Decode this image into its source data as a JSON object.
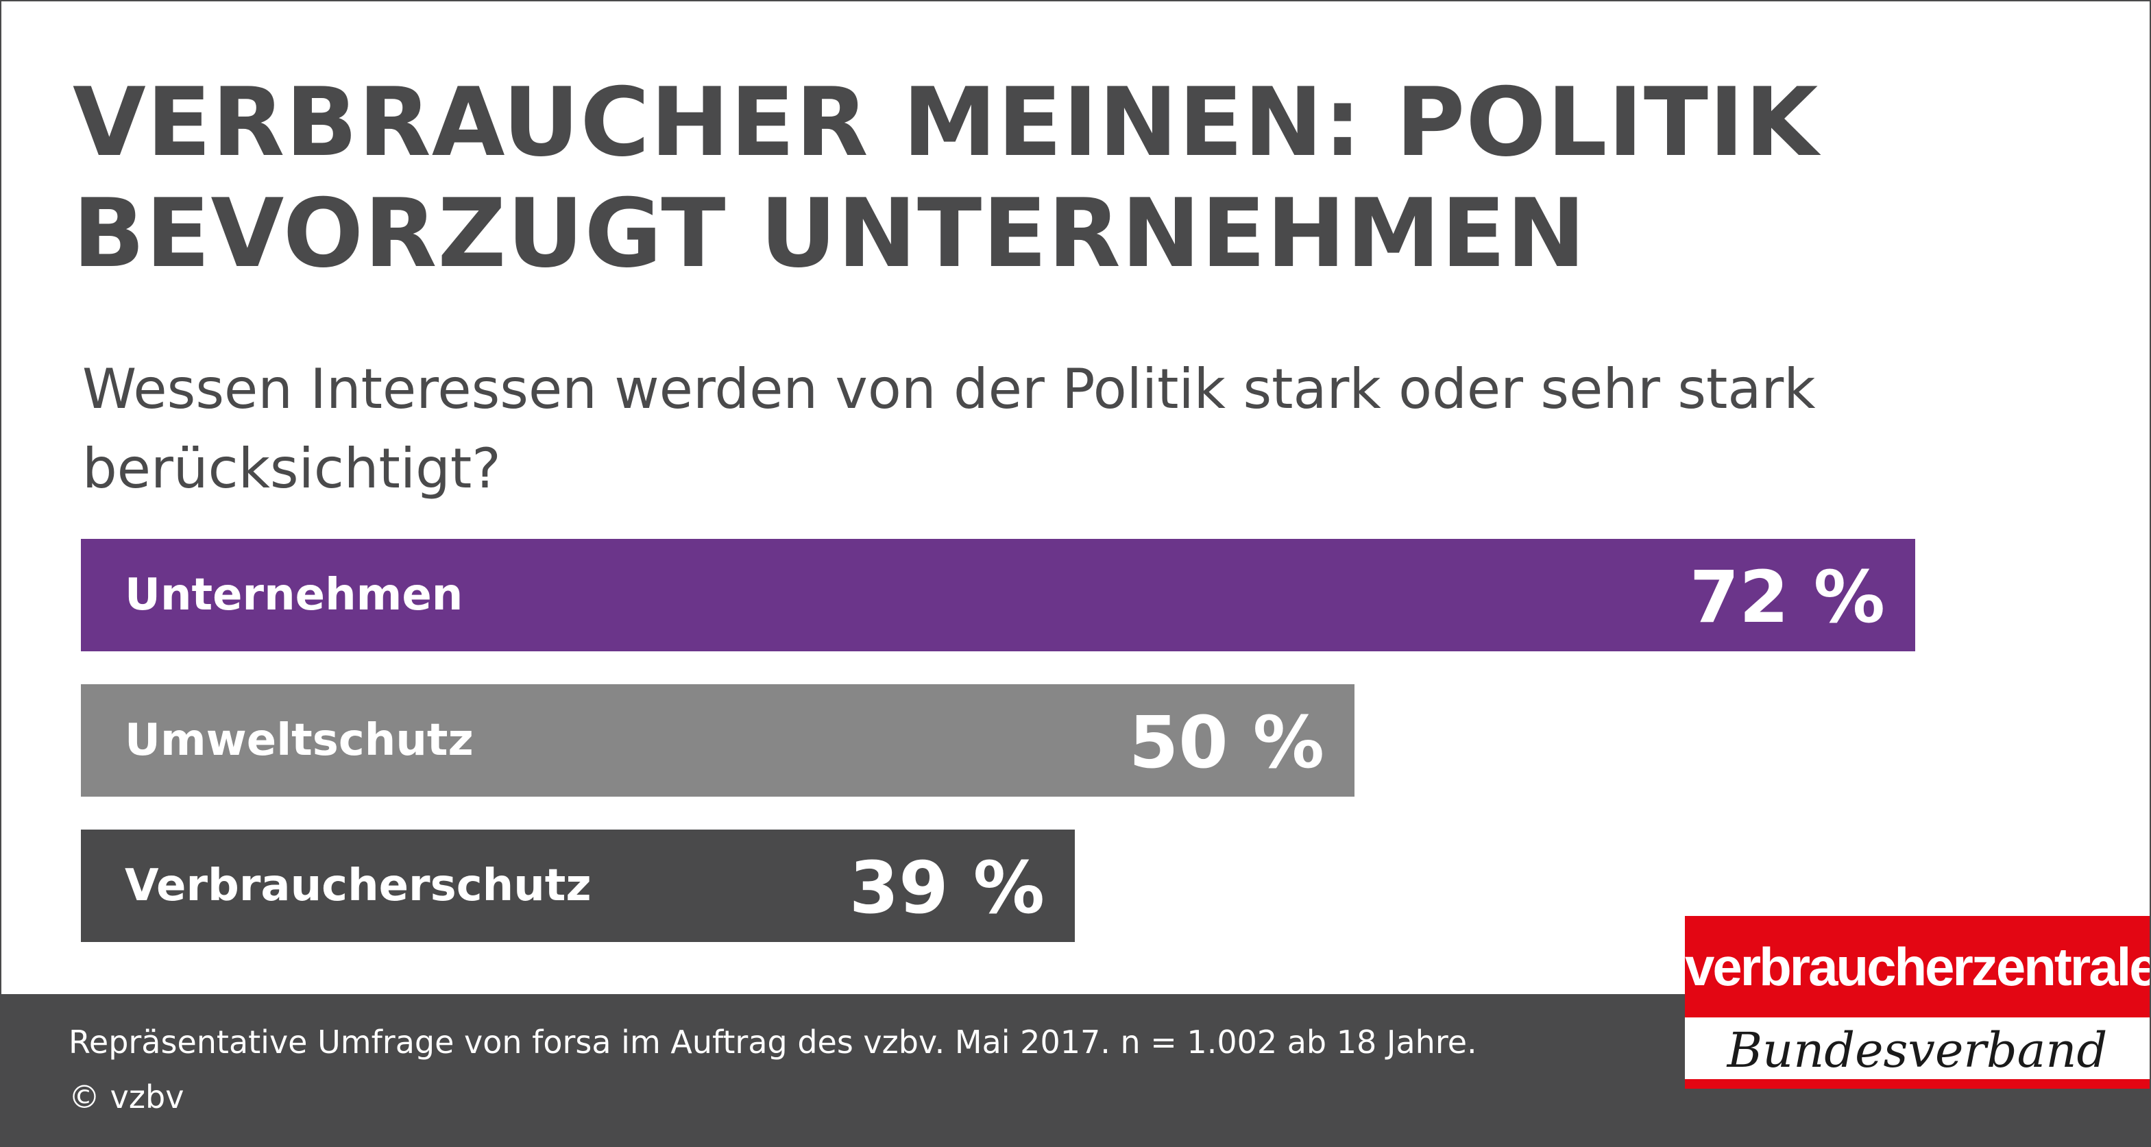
{
  "title": "VERBRAUCHER MEINEN: POLITIK BEVORZUGT UNTERNEHMEN",
  "subtitle": "Wessen Interessen werden von der Politik stark oder sehr stark berücksichtigt?",
  "chart_data": {
    "type": "bar",
    "orientation": "horizontal",
    "title": "VERBRAUCHER MEINEN: POLITIK BEVORZUGT UNTERNEHMEN",
    "subtitle": "Wessen Interessen werden von der Politik stark oder sehr stark berücksichtigt?",
    "categories": [
      "Unternehmen",
      "Umweltschutz",
      "Verbraucherschutz"
    ],
    "values": [
      72,
      50,
      39
    ],
    "value_labels": [
      "72 %",
      "50 %",
      "39 %"
    ],
    "unit": "%",
    "colors": [
      "#6b358a",
      "#878787",
      "#4a4a4b"
    ],
    "xlim": [
      0,
      72
    ],
    "grid": false,
    "legend": "none"
  },
  "footer": {
    "source": "Repräsentative Umfrage von forsa im Auftrag des vzbv. Mai 2017. n = 1.002 ab 18 Jahre.",
    "copyright": "© vzbv"
  },
  "logo": {
    "wordmark": "verbraucherzentrale",
    "script": "Bundesverband",
    "color": "#e30613"
  },
  "colors": {
    "text": "#4a4a4b",
    "footer_bg": "#4a4a4b"
  }
}
